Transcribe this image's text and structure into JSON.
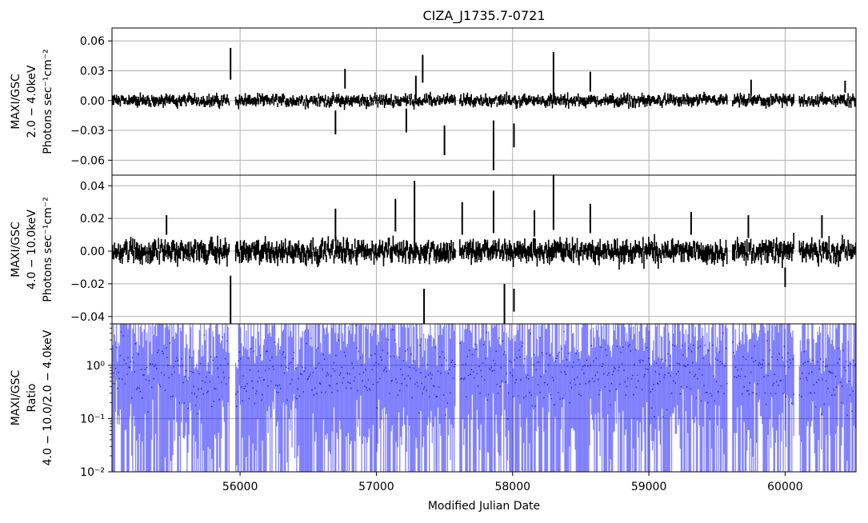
{
  "chart_data": {
    "type": "line",
    "title": "CIZA_J1735.7-0721",
    "xlabel": "Modified Julian Date",
    "xlim": [
      55060,
      60520
    ],
    "xticks": [
      56000,
      57000,
      58000,
      59000,
      60000
    ],
    "grid": true,
    "panels": [
      {
        "id": "soft",
        "ylabel_lines": [
          "MAXI/GSC",
          "2.0 − 4.0keV",
          "Photons sec⁻¹cm⁻²"
        ],
        "scale": "linear",
        "ylim": [
          -0.075,
          0.073
        ],
        "yticks": [
          -0.06,
          -0.03,
          0.0,
          0.03,
          0.06
        ],
        "ytick_labels": [
          "−0.06",
          "−0.03",
          "0.00",
          "0.03",
          "0.06"
        ],
        "color": "#000000",
        "noise": 0.0035,
        "spikes": [
          {
            "x": 55930,
            "y": 0.037,
            "err": 0.016
          },
          {
            "x": 56700,
            "y": -0.022,
            "err": 0.012
          },
          {
            "x": 56770,
            "y": 0.022,
            "err": 0.01
          },
          {
            "x": 57220,
            "y": -0.02,
            "err": 0.012
          },
          {
            "x": 57290,
            "y": 0.013,
            "err": 0.012
          },
          {
            "x": 57340,
            "y": 0.032,
            "err": 0.014
          },
          {
            "x": 57500,
            "y": -0.04,
            "err": 0.015
          },
          {
            "x": 57860,
            "y": -0.045,
            "err": 0.025
          },
          {
            "x": 58010,
            "y": -0.035,
            "err": 0.012
          },
          {
            "x": 58300,
            "y": 0.023,
            "err": 0.026
          },
          {
            "x": 58570,
            "y": 0.019,
            "err": 0.01
          },
          {
            "x": 59750,
            "y": 0.013,
            "err": 0.008
          },
          {
            "x": 60440,
            "y": 0.014,
            "err": 0.006
          }
        ]
      },
      {
        "id": "hard",
        "ylabel_lines": [
          "MAXI/GSC",
          "4.0 − 10.0keV",
          "Photons sec⁻¹cm⁻²"
        ],
        "scale": "linear",
        "ylim": [
          -0.0445,
          0.0465
        ],
        "yticks": [
          -0.04,
          -0.02,
          0.0,
          0.02,
          0.04
        ],
        "ytick_labels": [
          "−0.04",
          "−0.02",
          "0.00",
          "0.02",
          "0.04"
        ],
        "color": "#000000",
        "noise": 0.004,
        "spikes": [
          {
            "x": 55930,
            "y": -0.03,
            "err": 0.015
          },
          {
            "x": 55460,
            "y": 0.016,
            "err": 0.006
          },
          {
            "x": 56700,
            "y": 0.016,
            "err": 0.01
          },
          {
            "x": 57140,
            "y": 0.022,
            "err": 0.01
          },
          {
            "x": 57280,
            "y": 0.022,
            "err": 0.021
          },
          {
            "x": 57350,
            "y": -0.035,
            "err": 0.012
          },
          {
            "x": 57630,
            "y": 0.02,
            "err": 0.01
          },
          {
            "x": 57860,
            "y": 0.024,
            "err": 0.013
          },
          {
            "x": 57940,
            "y": -0.034,
            "err": 0.014
          },
          {
            "x": 58010,
            "y": -0.03,
            "err": 0.007
          },
          {
            "x": 58160,
            "y": 0.017,
            "err": 0.008
          },
          {
            "x": 58300,
            "y": 0.03,
            "err": 0.017
          },
          {
            "x": 58570,
            "y": 0.02,
            "err": 0.009
          },
          {
            "x": 59310,
            "y": 0.017,
            "err": 0.007
          },
          {
            "x": 59730,
            "y": 0.015,
            "err": 0.007
          },
          {
            "x": 60000,
            "y": -0.016,
            "err": 0.006
          },
          {
            "x": 60270,
            "y": 0.015,
            "err": 0.007
          }
        ]
      },
      {
        "id": "ratio",
        "ylabel_lines": [
          "MAXI/GSC",
          "Ratio",
          "4.0 − 10.0/2.0 − 4.0keV"
        ],
        "scale": "log",
        "ylim": [
          0.01,
          6.0
        ],
        "yticks": [
          0.01,
          0.1,
          1.0
        ],
        "ytick_labels": [
          "10⁻²",
          "10⁻¹",
          "10⁰"
        ],
        "color": "#0000ff"
      }
    ]
  }
}
